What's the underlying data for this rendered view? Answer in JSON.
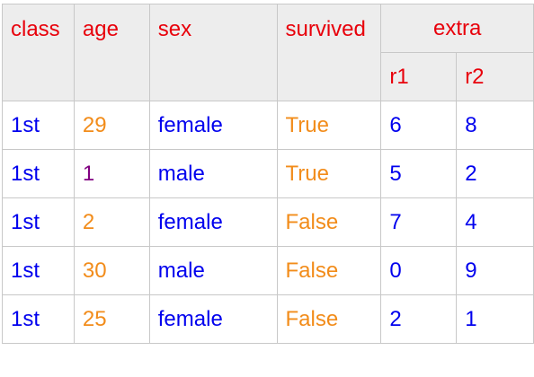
{
  "table": {
    "headers": {
      "class": "class",
      "age": "age",
      "sex": "sex",
      "survived": "survived",
      "extra": "extra",
      "r1": "r1",
      "r2": "r2"
    },
    "rows": [
      {
        "class": "1st",
        "age": "29",
        "age_color": "orange",
        "sex": "female",
        "survived": "True",
        "r1": "6",
        "r2": "8"
      },
      {
        "class": "1st",
        "age": "1",
        "age_color": "purple",
        "sex": "male",
        "survived": "True",
        "r1": "5",
        "r2": "2"
      },
      {
        "class": "1st",
        "age": "2",
        "age_color": "orange",
        "sex": "female",
        "survived": "False",
        "r1": "7",
        "r2": "4"
      },
      {
        "class": "1st",
        "age": "30",
        "age_color": "orange",
        "sex": "male",
        "survived": "False",
        "r1": "0",
        "r2": "9"
      },
      {
        "class": "1st",
        "age": "25",
        "age_color": "orange",
        "sex": "female",
        "survived": "False",
        "r1": "2",
        "r2": "1"
      }
    ]
  },
  "colors": {
    "header_text": "#e8000b",
    "header_bg": "#ededed",
    "blue_text": "#0000ee",
    "orange_text": "#f28c1a",
    "purple_text": "#800080",
    "border": "#c8c8c8"
  }
}
